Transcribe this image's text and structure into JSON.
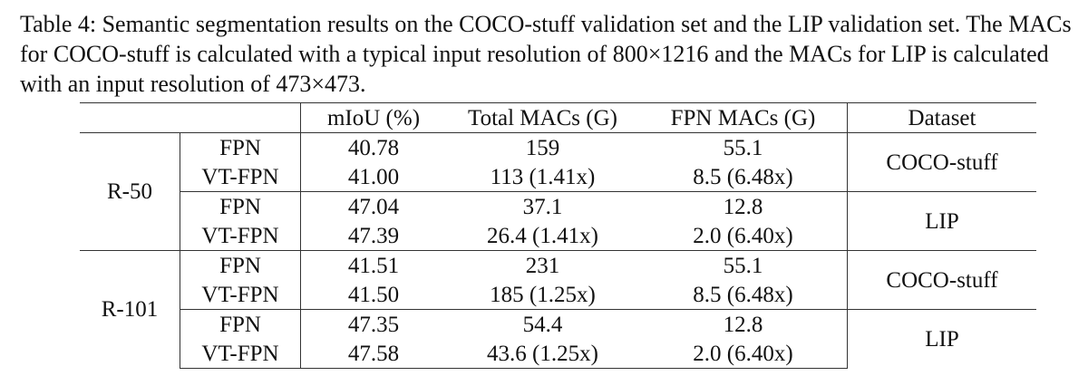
{
  "caption": "Table 4: Semantic segmentation results on the COCO-stuff validation set and the LIP validation set. The MACs for COCO-stuff is calculated with a typical input resolution of 800×1216 and the MACs for LIP is calculated with an input resolution of 473×473.",
  "table": {
    "headers": [
      "mIoU (%)",
      "Total MACs (G)",
      "FPN MACs (G)",
      "Dataset"
    ],
    "groups": [
      {
        "backbone": "R-50",
        "blocks": [
          {
            "dataset": "COCO-stuff",
            "rows": [
              [
                "FPN",
                "40.78",
                "159",
                "55.1"
              ],
              [
                "VT-FPN",
                "41.00",
                "113 (1.41x)",
                "8.5 (6.48x)"
              ]
            ]
          },
          {
            "dataset": "LIP",
            "rows": [
              [
                "FPN",
                "47.04",
                "37.1",
                "12.8"
              ],
              [
                "VT-FPN",
                "47.39",
                "26.4 (1.41x)",
                "2.0 (6.40x)"
              ]
            ]
          }
        ]
      },
      {
        "backbone": "R-101",
        "blocks": [
          {
            "dataset": "COCO-stuff",
            "rows": [
              [
                "FPN",
                "41.51",
                "231",
                "55.1"
              ],
              [
                "VT-FPN",
                "41.50",
                "185 (1.25x)",
                "8.5 (6.48x)"
              ]
            ]
          },
          {
            "dataset": "LIP",
            "rows": [
              [
                "FPN",
                "47.35",
                "54.4",
                "12.8"
              ],
              [
                "VT-FPN",
                "47.58",
                "43.6 (1.25x)",
                "2.0 (6.40x)"
              ]
            ]
          }
        ]
      }
    ]
  }
}
